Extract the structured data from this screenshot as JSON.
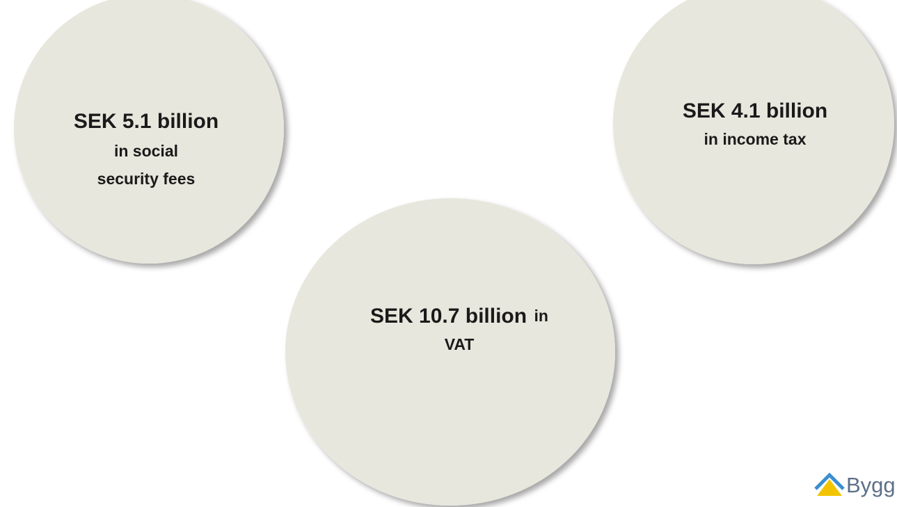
{
  "circles": [
    {
      "amount": "SEK 5.1 billion",
      "lines": [
        "in social",
        "security fees"
      ]
    },
    {
      "amount": "SEK 4.1 billion",
      "lines": [
        "in income tax"
      ]
    },
    {
      "amount": "SEK 10.7 billion",
      "lines": [
        "in",
        "VAT"
      ]
    }
  ],
  "logo": {
    "text": "Bygg"
  }
}
